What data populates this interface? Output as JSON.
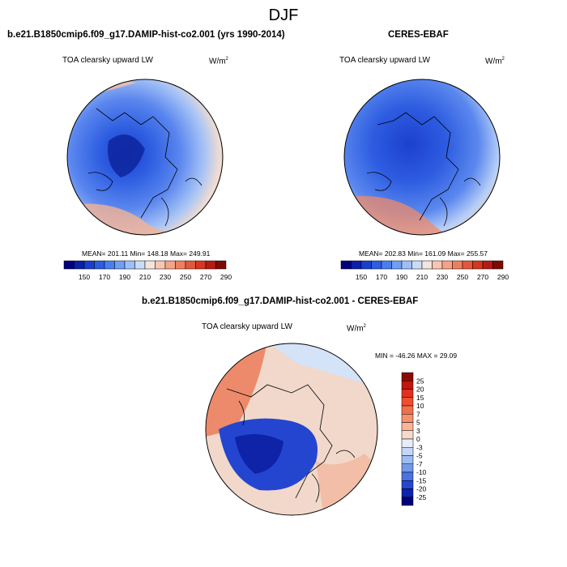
{
  "title": "DJF",
  "panels": [
    {
      "title": "b.e21.B1850cmip6.f09_g17.DAMIP-hist-co2.001 (yrs 1990-2014)",
      "field": "TOA clearsky upward LW",
      "units_base": "W/m",
      "units_exp": "2",
      "stats": "MEAN= 201.11  Min= 148.18  Max= 249.91"
    },
    {
      "title": "CERES-EBAF",
      "field": "TOA clearsky upward LW",
      "units_base": "W/m",
      "units_exp": "2",
      "stats": "MEAN= 202.83  Min= 161.09  Max= 255.57"
    },
    {
      "title": "b.e21.B1850cmip6.f09_g17.DAMIP-hist-co2.001 - CERES-EBAF",
      "field": "TOA clearsky upward LW",
      "units_base": "W/m",
      "units_exp": "2",
      "stats": "MIN = -46.26 MAX =  29.09"
    }
  ],
  "colorbar_abs": {
    "labels": [
      "150",
      "170",
      "190",
      "210",
      "230",
      "250",
      "270",
      "290"
    ],
    "colors": [
      "#00007f",
      "#0b1fa8",
      "#1a3fcc",
      "#2c5ee3",
      "#4a7eef",
      "#6f9ef5",
      "#9dbff8",
      "#c9dcf7",
      "#f1e5dd",
      "#f8c6b0",
      "#f5a285",
      "#f07e5e",
      "#e6573a",
      "#d73520",
      "#b51b12",
      "#7e0a06"
    ]
  },
  "colorbar_diff": {
    "labels": [
      "25",
      "20",
      "15",
      "10",
      "7",
      "5",
      "3",
      "0",
      "-3",
      "-5",
      "-7",
      "-10",
      "-15",
      "-20",
      "-25"
    ],
    "colors": [
      "#8b0a06",
      "#c1170e",
      "#e0311c",
      "#f04e2c",
      "#f26f4c",
      "#f5906f",
      "#f8b598",
      "#f7dacb",
      "#e6edf9",
      "#c4d7f6",
      "#9dbcf2",
      "#7199ea",
      "#4a72e0",
      "#2448cf",
      "#0d22b0",
      "#00007a"
    ]
  }
}
